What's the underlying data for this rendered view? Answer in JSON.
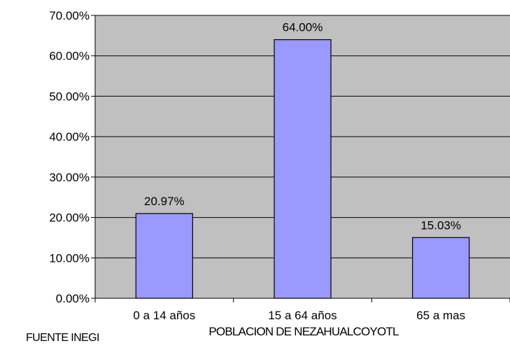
{
  "chart_data": {
    "type": "bar",
    "categories": [
      "0 a 14 años",
      "15 a 64 años",
      "65 a mas"
    ],
    "values": [
      20.97,
      64.0,
      15.03
    ],
    "value_labels": [
      "20.97%",
      "64.00%",
      "15.03%"
    ],
    "xlabel": "POBLACION DE NEZAHUALCOYOTL",
    "ylabel": "",
    "ylim": [
      0,
      70
    ],
    "y_ticks": [
      0,
      10,
      20,
      30,
      40,
      50,
      60,
      70
    ],
    "y_tick_labels": [
      "0.00%",
      "10.00%",
      "20.00%",
      "30.00%",
      "40.00%",
      "50.00%",
      "60.00%",
      "70.00%"
    ],
    "grid": true,
    "legend": "none"
  },
  "source_note": "FUENTE INEGI",
  "colors": {
    "bar_fill": "#9999ff",
    "bar_stroke": "#000000",
    "plot_background": "#c0c0c0",
    "gridline": "#000000",
    "page_background": "#ffffff"
  }
}
